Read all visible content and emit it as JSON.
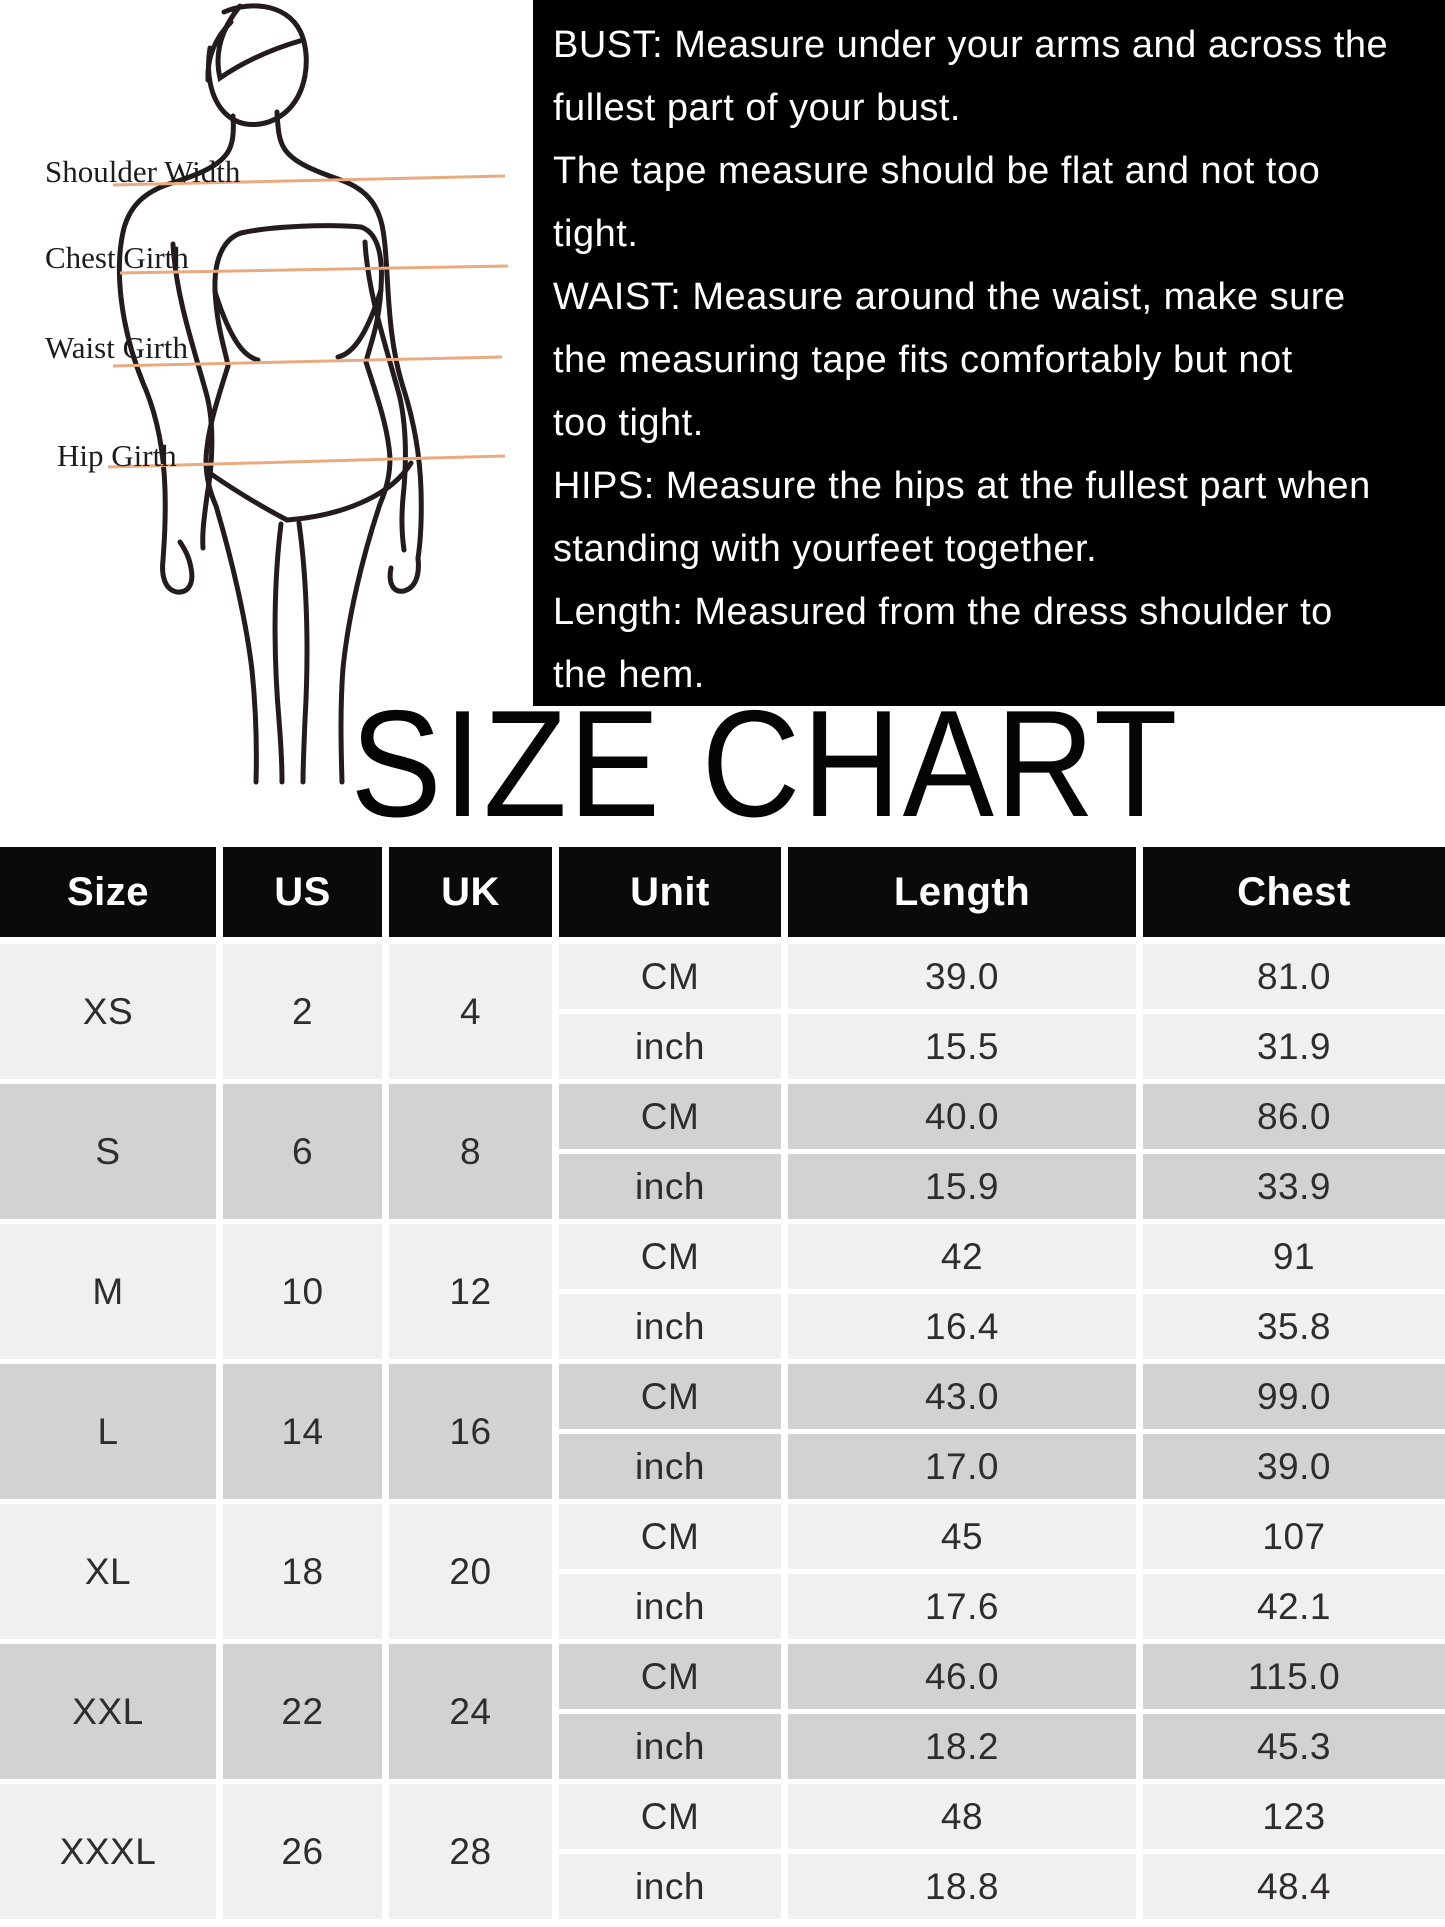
{
  "figure": {
    "labels": [
      {
        "text": "Shoulder Width"
      },
      {
        "text": "Chest Girth"
      },
      {
        "text": "Waist Girth"
      },
      {
        "text": "Hip Girth"
      }
    ]
  },
  "instructions": {
    "lines": [
      "BUST: Measure under your arms and across the",
      "fullest part of your bust.",
      "The tape measure should be flat and not too",
      "tight.",
      "WAIST: Measure around the waist, make sure",
      "the measuring tape fits comfortably but not",
      "too tight.",
      "HIPS: Measure the hips at the fullest part when",
      "standing with yourfeet together.",
      "Length: Measured from the dress shoulder to",
      "the hem."
    ]
  },
  "title": "SIZE CHART",
  "size_table": {
    "headers": [
      "Size",
      "US",
      "UK",
      "Unit",
      "Length",
      "Chest"
    ],
    "unit_labels": [
      "CM",
      "inch"
    ],
    "rows": [
      {
        "size": "XS",
        "us": "2",
        "uk": "4",
        "cm": {
          "length": "39.0",
          "chest": "81.0"
        },
        "inch": {
          "length": "15.5",
          "chest": "31.9"
        }
      },
      {
        "size": "S",
        "us": "6",
        "uk": "8",
        "cm": {
          "length": "40.0",
          "chest": "86.0"
        },
        "inch": {
          "length": "15.9",
          "chest": "33.9"
        }
      },
      {
        "size": "M",
        "us": "10",
        "uk": "12",
        "cm": {
          "length": "42",
          "chest": "91"
        },
        "inch": {
          "length": "16.4",
          "chest": "35.8"
        }
      },
      {
        "size": "L",
        "us": "14",
        "uk": "16",
        "cm": {
          "length": "43.0",
          "chest": "99.0"
        },
        "inch": {
          "length": "17.0",
          "chest": "39.0"
        }
      },
      {
        "size": "XL",
        "us": "18",
        "uk": "20",
        "cm": {
          "length": "45",
          "chest": "107"
        },
        "inch": {
          "length": "17.6",
          "chest": "42.1"
        }
      },
      {
        "size": "XXL",
        "us": "22",
        "uk": "24",
        "cm": {
          "length": "46.0",
          "chest": "115.0"
        },
        "inch": {
          "length": "18.2",
          "chest": "45.3"
        }
      },
      {
        "size": "XXXL",
        "us": "26",
        "uk": "28",
        "cm": {
          "length": "48",
          "chest": "123"
        },
        "inch": {
          "length": "18.8",
          "chest": "48.4"
        }
      }
    ]
  },
  "colors": {
    "panel_bg": "#000000",
    "header_bg": "#0a0a0a",
    "row_light": "#f1f0f0",
    "row_dark": "#d2d2d2",
    "measure_line": "#eaaa80",
    "sketch_stroke": "#241c1c"
  }
}
